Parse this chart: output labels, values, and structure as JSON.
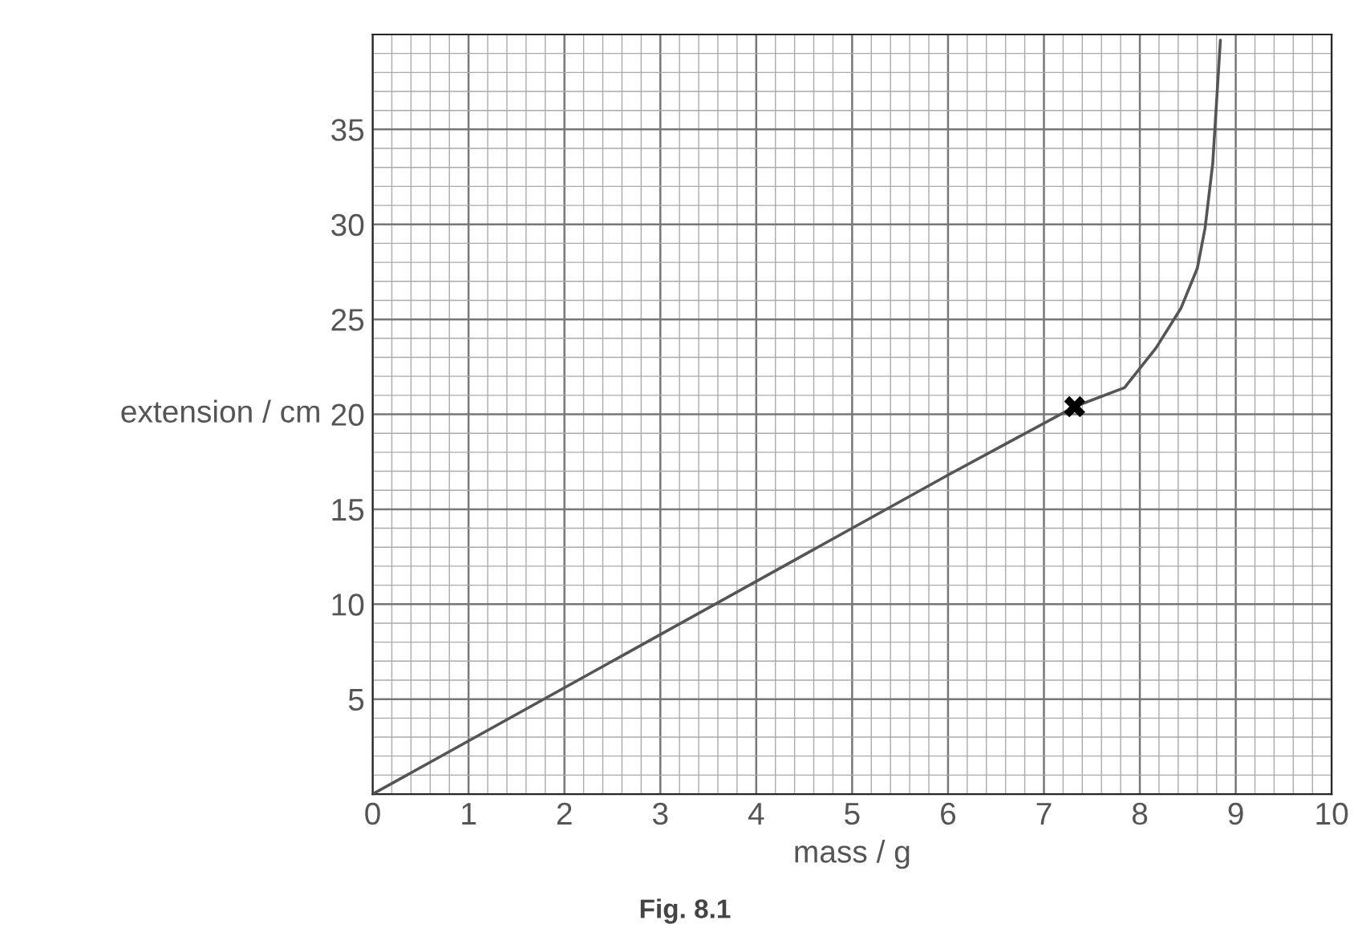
{
  "chart_data": {
    "type": "line",
    "xlabel": "mass / g",
    "ylabel": "extension / cm",
    "annotations": [
      "Fig. 8.1"
    ],
    "series": [
      {
        "color": "#555555",
        "x": [
          0,
          3,
          6,
          7.32,
          7.84,
          8.17,
          8.43,
          8.6,
          8.68,
          8.76,
          8.84
        ],
        "values": [
          0,
          8.4,
          16.8,
          20.4,
          21.4,
          23.5,
          25.6,
          27.7,
          29.8,
          33.2,
          39.7
        ]
      },
      {
        "type": "scatter",
        "color": "#000000",
        "marker": "cross",
        "x": [
          7.32
        ],
        "values": [
          20.4
        ]
      }
    ],
    "xlim": [
      0,
      10
    ],
    "ylim": [
      0,
      40
    ],
    "xticks": [
      0,
      1,
      2,
      3,
      4,
      5,
      6,
      7,
      8,
      9,
      10
    ],
    "yticks": [
      5,
      10,
      15,
      20,
      25,
      30,
      35
    ],
    "grid": true
  }
}
